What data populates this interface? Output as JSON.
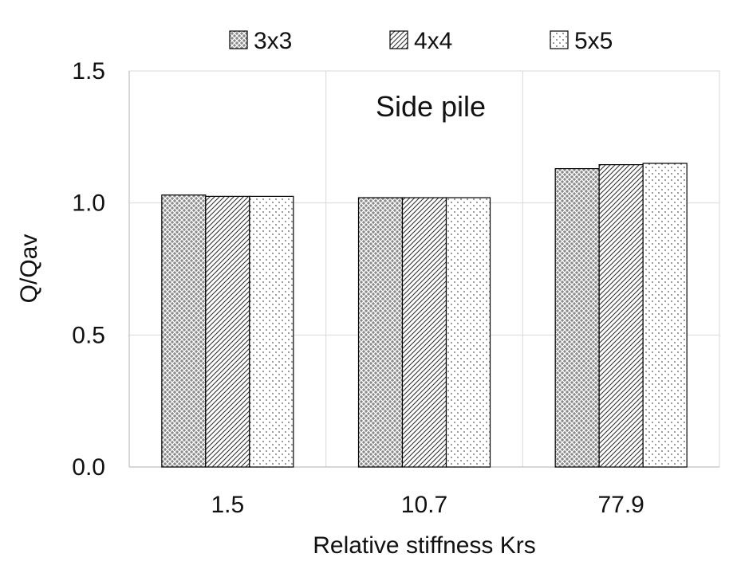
{
  "chart_data": {
    "type": "bar",
    "title": "",
    "annotation": "Side pile",
    "xlabel": "Relative stiffness Krs",
    "ylabel": "Q/Qav",
    "categories": [
      "1.5",
      "10.7",
      "77.9"
    ],
    "ylim": [
      0,
      1.5
    ],
    "yticks": [
      "0.0",
      "0.5",
      "1.0",
      "1.5"
    ],
    "grid": true,
    "legend_position": "top",
    "series": [
      {
        "name": "3x3",
        "pattern": "crosshatch",
        "values": [
          1.03,
          1.02,
          1.13
        ]
      },
      {
        "name": "4x4",
        "pattern": "diagonal",
        "values": [
          1.025,
          1.02,
          1.145
        ]
      },
      {
        "name": "5x5",
        "pattern": "dots",
        "values": [
          1.025,
          1.02,
          1.15
        ]
      }
    ]
  }
}
